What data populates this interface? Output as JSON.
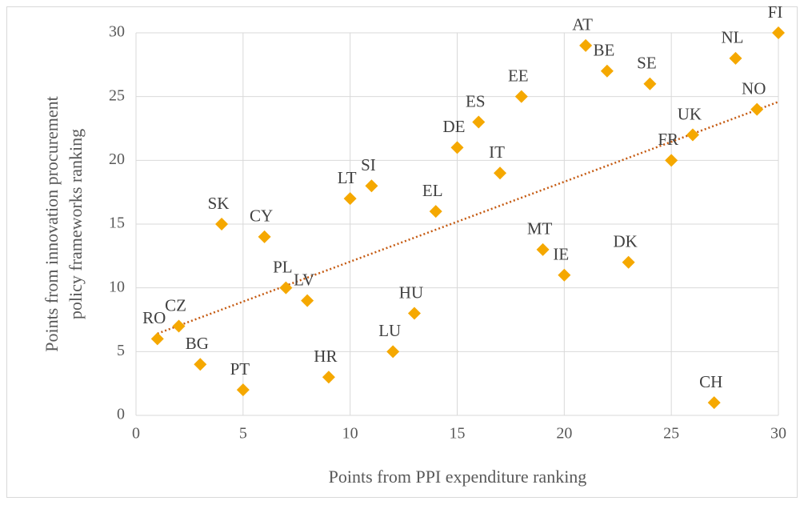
{
  "chart_data": {
    "type": "scatter",
    "x_label": "Points from PPI expenditure ranking",
    "y_label": [
      "Points from innovation procurement",
      "policy frameworks  ranking"
    ],
    "xlim": [
      0,
      30
    ],
    "xticks": [
      0,
      5,
      10,
      15,
      20,
      25,
      30
    ],
    "ylim": [
      0,
      30
    ],
    "yticks": [
      0,
      5,
      10,
      15,
      20,
      25,
      30
    ],
    "grid": true,
    "trendline": {
      "type": "linear",
      "color": "#c55a11"
    },
    "series": [
      {
        "color": "#f5a800",
        "labels": [
          "RO",
          "CZ",
          "BG",
          "SK",
          "PT",
          "CY",
          "PL",
          "LV",
          "HR",
          "LT",
          "SI",
          "LU",
          "HU",
          "EL",
          "DE",
          "ES",
          "IT",
          "EE",
          "MT",
          "IE",
          "AT",
          "BE",
          "DK",
          "SE",
          "FR",
          "UK",
          "CH",
          "NL",
          "NO",
          "FI"
        ],
        "x": [
          1,
          2,
          3,
          4,
          5,
          6,
          7,
          8,
          9,
          10,
          11,
          12,
          13,
          14,
          15,
          16,
          17,
          18,
          19,
          20,
          21,
          22,
          23,
          24,
          25,
          26,
          27,
          28,
          29,
          30
        ],
        "values": [
          6,
          7,
          4,
          15,
          2,
          14,
          10,
          9,
          3,
          17,
          18,
          5,
          8,
          16,
          21,
          23,
          19,
          25,
          13,
          11,
          29,
          27,
          12,
          26,
          20,
          22,
          1,
          28,
          24,
          30
        ]
      }
    ]
  }
}
